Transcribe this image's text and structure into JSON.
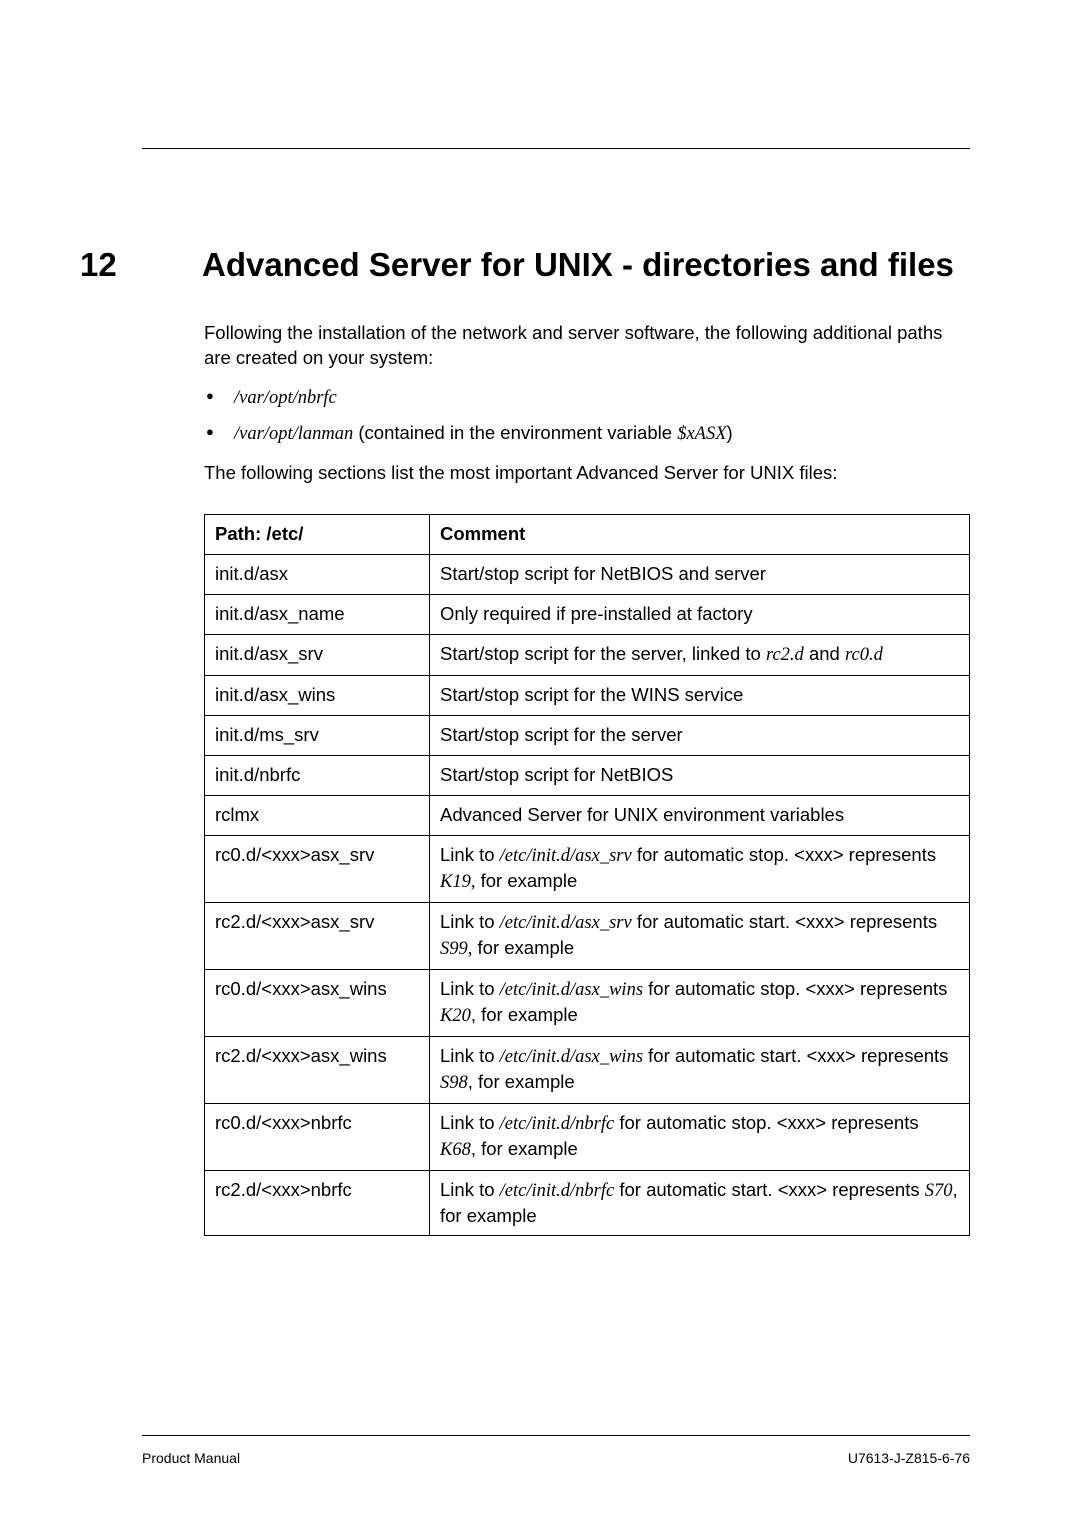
{
  "chapter": {
    "number": "12",
    "title": "Advanced Server for UNIX - directories and files"
  },
  "intro": {
    "para1": "Following the installation of the network and server software, the following additional paths are created on your system:",
    "bullets": [
      {
        "italic": "/var/opt/nbrfc",
        "rest": ""
      },
      {
        "italic": "/var/opt/lanman",
        "rest": " (contained in the environment variable ",
        "var": "$xASX",
        "close": ")"
      }
    ],
    "para2": "The following sections list the most important Advanced Server for UNIX files:"
  },
  "table": {
    "headers": {
      "path": "Path: /etc/",
      "comment": "Comment"
    },
    "rows": [
      {
        "path": "init.d/asx",
        "comment_prefix": "Start/stop script for NetBIOS and server"
      },
      {
        "path": "init.d/asx_name",
        "comment_prefix": "Only required if pre-installed at factory"
      },
      {
        "path": "init.d/asx_srv",
        "comment_prefix": "Start/stop script for the server, linked to ",
        "italic1": "rc2.d",
        "mid": " and ",
        "italic2": "rc0.d"
      },
      {
        "path": "init.d/asx_wins",
        "comment_prefix": "Start/stop script for the WINS service"
      },
      {
        "path": "init.d/ms_srv",
        "comment_prefix": "Start/stop script for the server"
      },
      {
        "path": "init.d/nbrfc",
        "comment_prefix": "Start/stop script for NetBIOS"
      },
      {
        "path": "rclmx",
        "comment_prefix": "Advanced Server for UNIX environment variables"
      },
      {
        "path": "rc0.d/<xxx>asx_srv",
        "comment_prefix": "Link to ",
        "italic1": "/etc/init.d/asx_srv",
        "mid": " for automatic stop. <xxx> represents ",
        "italic2": "K19,",
        "suffix": " for example"
      },
      {
        "path": "rc2.d/<xxx>asx_srv",
        "comment_prefix": "Link to ",
        "italic1": "/etc/init.d/asx_srv",
        "mid": " for automatic start. <xxx> represents ",
        "italic2": "S99,",
        "suffix": " for example"
      },
      {
        "path": "rc0.d/<xxx>asx_wins",
        "comment_prefix": "Link to ",
        "italic1": "/etc/init.d/asx_wins",
        "mid": " for automatic stop. <xxx> represents ",
        "italic2": "K20",
        "suffix": ", for example"
      },
      {
        "path": "rc2.d/<xxx>asx_wins",
        "comment_prefix": "Link to ",
        "italic1": "/etc/init.d/asx_wins",
        "mid": " for automatic start. <xxx> represents ",
        "italic2": "S98",
        "suffix": ", for example"
      },
      {
        "path": "rc0.d/<xxx>nbrfc",
        "comment_prefix": "Link to ",
        "italic1": "/etc/init.d/nbrfc",
        "mid": " for automatic stop. <xxx> represents ",
        "italic2": "K68",
        "suffix": ", for example"
      },
      {
        "path": "rc2.d/<xxx>nbrfc",
        "comment_prefix": "Link to ",
        "italic1": "/etc/init.d/nbrfc",
        "mid": " for automatic start. <xxx> represents ",
        "italic2": "S70",
        "suffix": ", for example"
      }
    ]
  },
  "footer": {
    "left": "Product Manual",
    "right": "U7613-J-Z815-6-76"
  }
}
